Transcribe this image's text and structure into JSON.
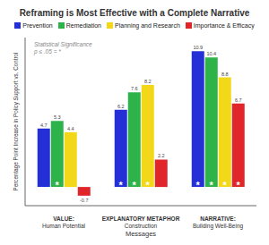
{
  "chart_data": {
    "type": "bar",
    "title": "Reframing is Most Effective with a Complete Narrative",
    "categories": [
      "VALUE:\nHuman Potential",
      "EXPLANATORY METAPHOR\nConstruction",
      "NARRATIVE:\nBuilding Well-Being"
    ],
    "series": [
      {
        "name": "Prevention",
        "color": "#2430d6",
        "values": [
          4.7,
          6.2,
          10.9
        ],
        "significant": [
          false,
          true,
          true
        ]
      },
      {
        "name": "Remediation",
        "color": "#2db34a",
        "values": [
          5.3,
          7.6,
          10.4
        ],
        "significant": [
          true,
          true,
          true
        ]
      },
      {
        "name": "Planning and Research",
        "color": "#f3d81a",
        "values": [
          4.4,
          8.2,
          8.8
        ],
        "significant": [
          false,
          true,
          true
        ]
      },
      {
        "name": "Importance & Efficacy",
        "color": "#e0262b",
        "values": [
          -0.7,
          2.2,
          6.7
        ],
        "significant": [
          false,
          false,
          true
        ]
      }
    ],
    "x_label": "Messages",
    "y_label": "Percentage Point Increase in Policy Support vs. Control",
    "annotation": "Statistical Significance\np ≤ .05 = *",
    "significance_marker": "*",
    "ylim": [
      -1.5,
      12
    ],
    "tick_labels": "x",
    "data_labels": true,
    "legend": "top"
  }
}
